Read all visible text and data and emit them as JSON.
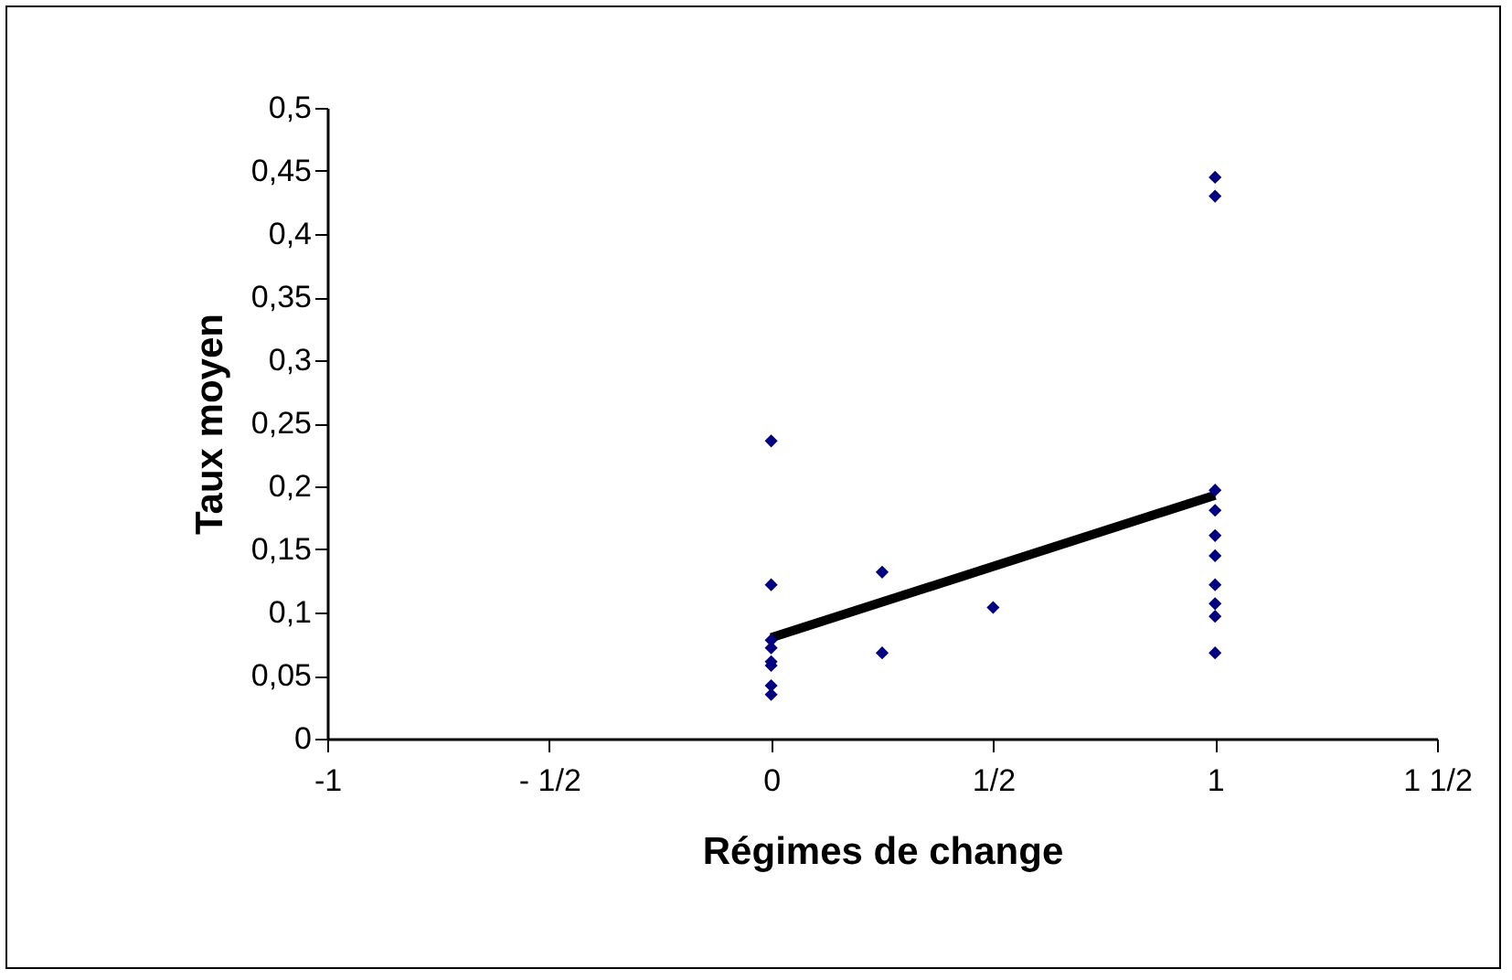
{
  "chart_data": {
    "type": "scatter",
    "xlabel": "Régimes de change",
    "ylabel": "Taux moyen",
    "grid": false,
    "xlim": [
      -1,
      1.5
    ],
    "xticks": [
      {
        "value": -1,
        "label": "-1"
      },
      {
        "value": -0.5,
        "label": "- 1/2"
      },
      {
        "value": 0,
        "label": "0"
      },
      {
        "value": 0.5,
        "label": "1/2"
      },
      {
        "value": 1,
        "label": "1"
      },
      {
        "value": 1.5,
        "label": "1 1/2"
      }
    ],
    "ylim": [
      0,
      0.5
    ],
    "yticks": [
      {
        "value": 0,
        "label": "0"
      },
      {
        "value": 0.05,
        "label": "0,05"
      },
      {
        "value": 0.1,
        "label": "0,1"
      },
      {
        "value": 0.15,
        "label": "0,15"
      },
      {
        "value": 0.2,
        "label": "0,2"
      },
      {
        "value": 0.25,
        "label": "0,25"
      },
      {
        "value": 0.3,
        "label": "0,3"
      },
      {
        "value": 0.35,
        "label": "0,35"
      },
      {
        "value": 0.4,
        "label": "0,4"
      },
      {
        "value": 0.45,
        "label": "0,45"
      },
      {
        "value": 0.5,
        "label": "0,5"
      }
    ],
    "series": [
      {
        "type": "scatter",
        "marker": "diamond",
        "color": "#000080",
        "x": [
          0,
          0,
          0,
          0,
          0,
          0,
          0,
          0,
          0.25,
          0.25,
          0.5,
          1,
          1,
          1,
          1,
          1,
          1,
          1,
          1,
          1,
          1
        ],
        "values": [
          0.236,
          0.122,
          0.078,
          0.072,
          0.061,
          0.058,
          0.042,
          0.035,
          0.132,
          0.068,
          0.104,
          0.445,
          0.43,
          0.197,
          0.181,
          0.161,
          0.145,
          0.122,
          0.107,
          0.097,
          0.068
        ]
      },
      {
        "type": "line",
        "color": "#000000",
        "x": [
          0,
          1
        ],
        "values": [
          0.08,
          0.193
        ]
      }
    ]
  }
}
